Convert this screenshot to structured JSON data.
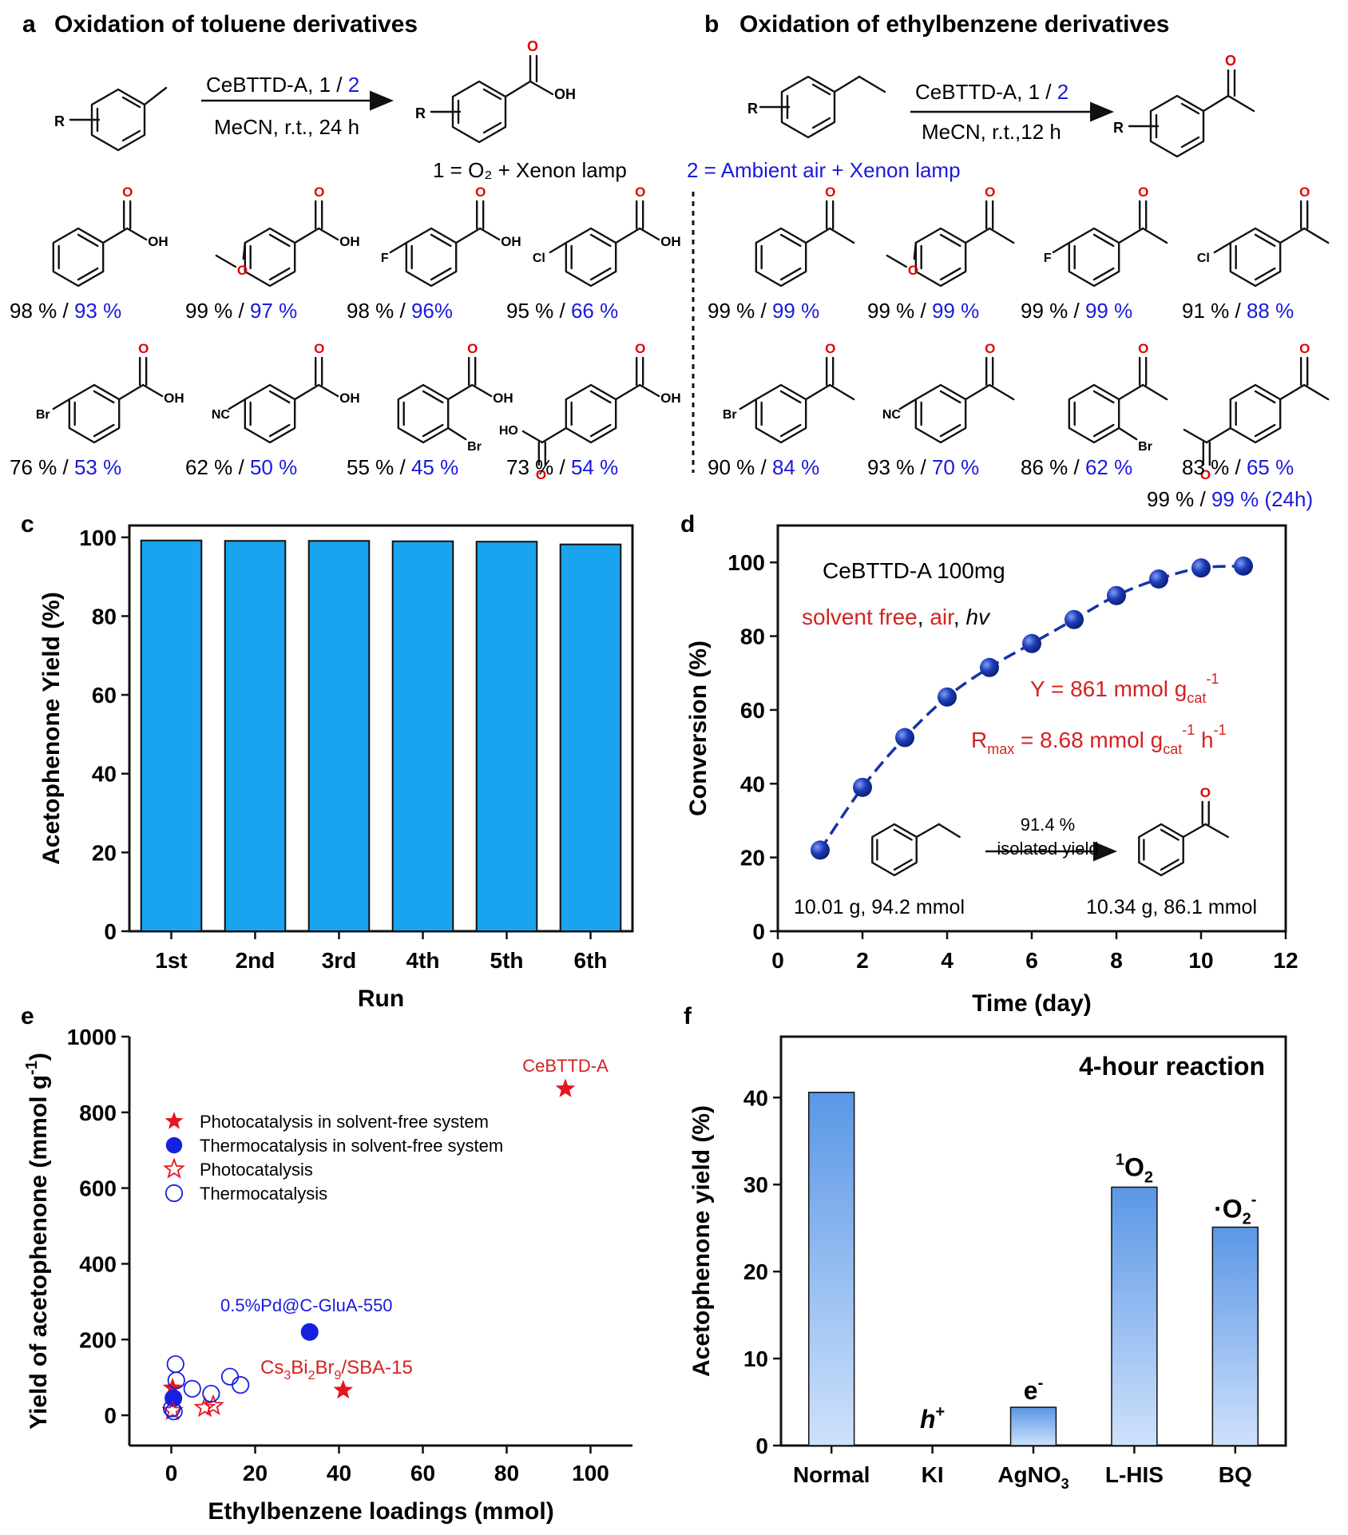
{
  "colors": {
    "blue_text": "#1a1adb",
    "red_text": "#d42222",
    "bar_c": "#1aa3ee",
    "bar_f_top": "#5a97e6",
    "bar_f_bottom": "#cfe1fb",
    "line_d": "#1733a8"
  },
  "panel_a": {
    "letter": "a",
    "title": "Oxidation of toluene derivatives",
    "conditions_top": "CeBTTD-A, 1 / ",
    "conditions_top_blue": "2",
    "conditions_bottom": "MeCN, r.t., 24 h",
    "r_label": "R",
    "oh_label": "OH",
    "o_label": "O",
    "products": [
      {
        "sub": "",
        "yield1": "98 %",
        "yield2": "93 %"
      },
      {
        "sub": "OMe",
        "yield1": "99 %",
        "yield2": "97 %"
      },
      {
        "sub": "F",
        "yield1": "98 %",
        "yield2": "96%"
      },
      {
        "sub": "Cl",
        "yield1": "95 %",
        "yield2": "66 %"
      },
      {
        "sub": "Br",
        "yield1": "76 %",
        "yield2": "53 %"
      },
      {
        "sub": "NC",
        "yield1": "62 %",
        "yield2": "50 %"
      },
      {
        "sub": "Br",
        "yield1": "55 %",
        "yield2": "45 %"
      },
      {
        "sub": "HO",
        "yield1": "73 %",
        "yield2": "54 %"
      }
    ]
  },
  "panel_b": {
    "letter": "b",
    "title": "Oxidation of ethylbenzene derivatives",
    "conditions_top": "CeBTTD-A, 1 / ",
    "conditions_top_blue": "2",
    "conditions_bottom": "MeCN, r.t.,12 h",
    "products": [
      {
        "sub": "",
        "yield1": "99 %",
        "yield2": "99 %"
      },
      {
        "sub": "OMe",
        "yield1": "99 %",
        "yield2": "99 %"
      },
      {
        "sub": "F",
        "yield1": "99 %",
        "yield2": "99 %"
      },
      {
        "sub": "Cl",
        "yield1": "91 %",
        "yield2": "88 %"
      },
      {
        "sub": "Br",
        "yield1": "90 %",
        "yield2": "84 %"
      },
      {
        "sub": "NC",
        "yield1": "93 %",
        "yield2": "70 %"
      },
      {
        "sub": "Br",
        "yield1": "86 %",
        "yield2": "62 %"
      },
      {
        "sub": "Ac",
        "yield1": "83 %",
        "yield2": "65 %"
      }
    ],
    "extra_yield1": "99 % / ",
    "extra_yield2": "99 % (24h)"
  },
  "legend_1": "1 = O₂ + Xenon lamp",
  "legend_2": "2 = Ambient air + Xenon lamp",
  "chart_data": [
    {
      "panel": "c",
      "type": "bar",
      "categories": [
        "1st",
        "2nd",
        "3rd",
        "4th",
        "5th",
        "6th"
      ],
      "values": [
        99.2,
        99.1,
        99.1,
        99.0,
        98.9,
        98.2
      ],
      "xlabel": "Run",
      "ylabel": "Acetophenone Yield (%)",
      "ylim": [
        0,
        100
      ],
      "yticks": [
        "0",
        "20",
        "40",
        "60",
        "80",
        "100"
      ],
      "grid": false
    },
    {
      "panel": "d",
      "type": "line",
      "x": [
        1,
        2,
        3,
        4,
        5,
        6,
        7,
        8,
        9,
        10,
        11
      ],
      "y": [
        22,
        39,
        52.5,
        63.5,
        71.5,
        78,
        84.5,
        91,
        95.5,
        98.5,
        99
      ],
      "xlabel": "Time (day)",
      "ylabel": "Conversion (%)",
      "xlim": [
        0,
        12
      ],
      "ylim": [
        0,
        110
      ],
      "xticks": [
        "0",
        "2",
        "4",
        "6",
        "8",
        "10",
        "12"
      ],
      "yticks": [
        "0",
        "20",
        "40",
        "60",
        "80",
        "100"
      ],
      "annotations": {
        "catalyst": "CeBTTD-A 100mg",
        "cond_red1": "solvent free",
        "cond_sep1": ", ",
        "cond_red2": "air",
        "cond_sep2": ", ",
        "cond_italic": "hv",
        "y_eq": "Y = 861 mmol g",
        "y_sub": "cat",
        "y_sup": "-1",
        "r_main": "R",
        "r_sub": "max",
        "r_eq": " = 8.68 mmol g",
        "r_sub2": "cat",
        "r_sup1": "-1",
        "r_h": " h",
        "r_sup2": "-1",
        "arrow_top": "91.4 %",
        "arrow_bottom": "isolated yield",
        "start_mass": "10.01 g, 94.2 mmol",
        "end_mass": "10.34 g, 86.1 mmol"
      },
      "grid": false
    },
    {
      "panel": "e",
      "type": "scatter",
      "xlabel": "Ethylbenzene loadings (mmol)",
      "ylabel_main": "Yield of acetophenone (mmol g",
      "ylabel_sup": "-1",
      "ylabel_end": ")",
      "xlim": [
        -10,
        110
      ],
      "ylim": [
        -80,
        1000
      ],
      "xticks": [
        "0",
        "20",
        "40",
        "60",
        "80",
        "100"
      ],
      "yticks": [
        "0",
        "200",
        "400",
        "600",
        "800",
        "1000"
      ],
      "legend_placement": "upper-left",
      "series": [
        {
          "name": "Photocatalysis in solvent-free system",
          "marker": "filled-star",
          "color": "#e8141e",
          "points": [
            [
              94,
              862
            ],
            [
              41,
              66
            ],
            [
              0.3,
              72
            ]
          ]
        },
        {
          "name": "Thermocatalysis in solvent-free system",
          "marker": "filled-circle",
          "color": "#1520e0",
          "points": [
            [
              33,
              220
            ],
            [
              0.5,
              45
            ]
          ]
        },
        {
          "name": "Photocatalysis",
          "marker": "open-star",
          "color": "#e8141e",
          "points": [
            [
              0.3,
              12
            ],
            [
              8,
              20
            ],
            [
              10,
              25
            ]
          ]
        },
        {
          "name": "Thermocatalysis",
          "marker": "open-circle",
          "color": "#1520e0",
          "points": [
            [
              1,
              135
            ],
            [
              1.2,
              92
            ],
            [
              0.6,
              10
            ],
            [
              0.1,
              18
            ],
            [
              5,
              70
            ],
            [
              9.5,
              57
            ],
            [
              14,
              102
            ],
            [
              16.5,
              80
            ]
          ]
        }
      ],
      "labels": {
        "cebttd": "CeBTTD-A",
        "pd": "0.5%Pd@C-GluA-550",
        "cs_main": "Cs",
        "cs_sub1": "3",
        "cs_bi": "Bi",
        "cs_sub2": "2",
        "cs_br": "Br",
        "cs_sub3": "9",
        "cs_end": "/SBA-15"
      }
    },
    {
      "panel": "f",
      "type": "bar",
      "categories": [
        "Normal",
        "KI",
        "AgNO",
        "L-HIS",
        "BQ"
      ],
      "category_subs": [
        "",
        "",
        "3",
        "",
        ""
      ],
      "values": [
        40.6,
        0,
        4.4,
        29.7,
        25.1
      ],
      "ylabel": "Acetophenone yield (%)",
      "ylim": [
        0,
        45
      ],
      "yticks": [
        "0",
        "10",
        "20",
        "30",
        "40"
      ],
      "title": "4-hour reaction",
      "bar_labels": {
        "ki_main": "h",
        "ki_sup": "+",
        "ag_main": "e",
        "ag_sup": "-",
        "his_sup": "1",
        "his_main": "O",
        "his_sub": "2",
        "bq_main": "·O",
        "bq_sub": "2",
        "bq_sup": "-"
      },
      "grid": false
    }
  ]
}
